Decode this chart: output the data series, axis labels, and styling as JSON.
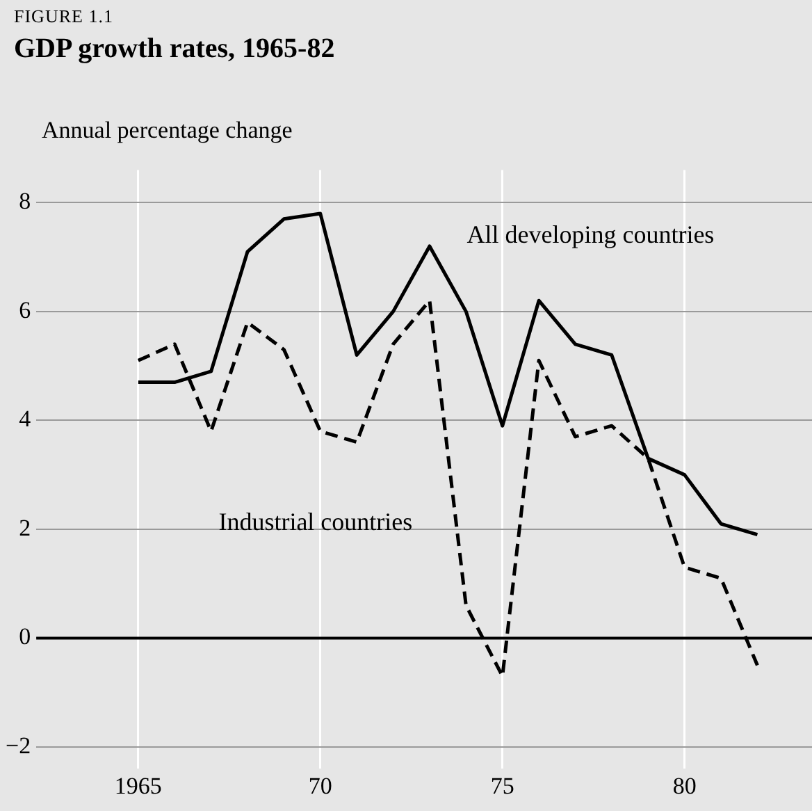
{
  "chart_data": {
    "type": "line",
    "title": "GDP growth rates, 1965-82",
    "ylabel": "Annual percentage change",
    "annotations": [
      "FIGURE 1.1"
    ],
    "x": [
      1965,
      1966,
      1967,
      1968,
      1969,
      1970,
      1971,
      1972,
      1973,
      1974,
      1975,
      1976,
      1977,
      1978,
      1979,
      1980,
      1981,
      1982
    ],
    "series": [
      {
        "name": "All developing countries",
        "color": "#000000",
        "line_style": "solid",
        "values": [
          4.7,
          4.7,
          4.9,
          7.1,
          7.7,
          7.8,
          5.2,
          6.0,
          7.2,
          6.0,
          3.9,
          6.2,
          5.4,
          5.2,
          3.3,
          3.0,
          2.1,
          1.9
        ]
      },
      {
        "name": "Industrial countries",
        "color": "#000000",
        "line_style": "dashed",
        "values": [
          5.1,
          5.4,
          3.8,
          5.8,
          5.3,
          3.8,
          3.6,
          5.4,
          6.2,
          0.6,
          -0.7,
          5.1,
          3.7,
          3.9,
          3.3,
          1.3,
          1.1,
          -0.5
        ]
      }
    ],
    "xlim": [
      1962.2,
      1983.5
    ],
    "xticks": [
      1965,
      {
        "value": 1970,
        "label": "70"
      },
      {
        "value": 1975,
        "label": "75"
      },
      {
        "value": 1980,
        "label": "80"
      }
    ],
    "ylim": [
      -2.4,
      8.6
    ],
    "yticks": [
      {
        "value": -2,
        "label": "−2"
      },
      0,
      2,
      4,
      6,
      8
    ],
    "ref_lines": [
      {
        "axis": "y",
        "value": 0
      }
    ],
    "grid": true,
    "legend": false,
    "marker": "none"
  }
}
